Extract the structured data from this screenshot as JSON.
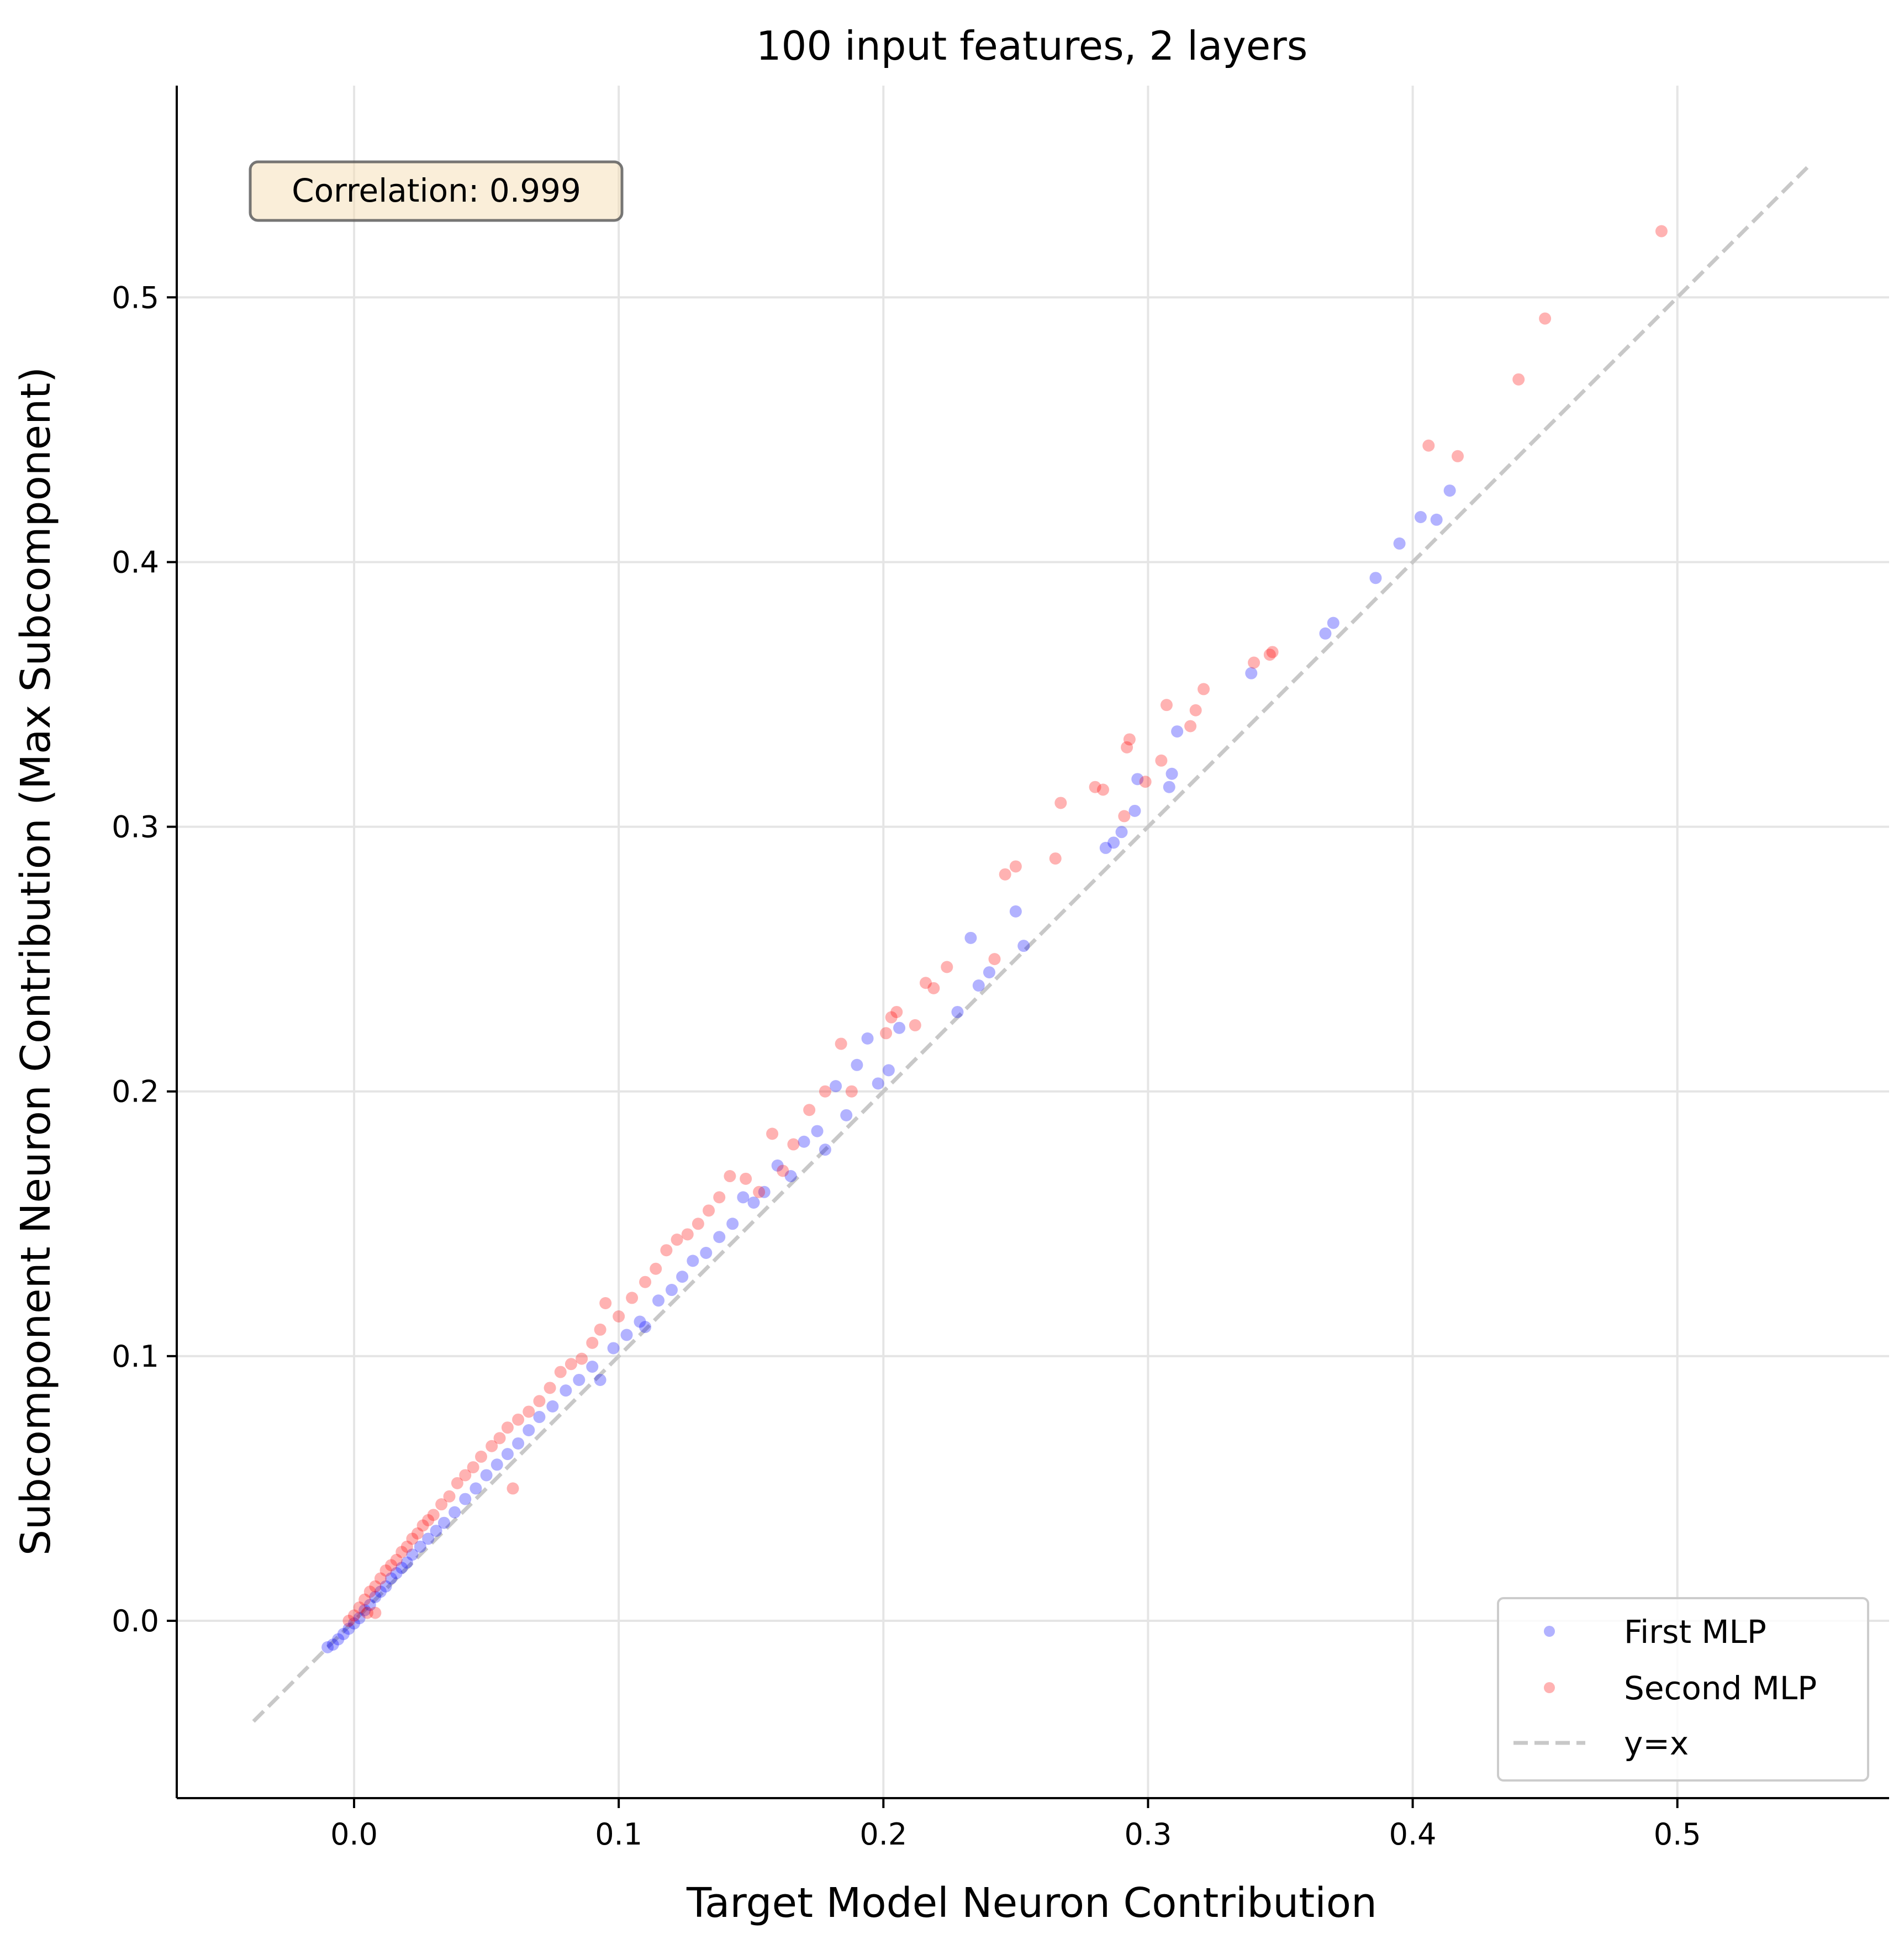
{
  "chart_data": {
    "type": "scatter",
    "title": "100 input features, 2 layers",
    "xlabel": "Target Model Neuron Contribution",
    "ylabel": "Subcomponent Neuron Contribution (Max Subcomponent)",
    "xlim": [
      -0.067,
      0.58
    ],
    "ylim": [
      -0.067,
      0.58
    ],
    "xticks": [
      0.0,
      0.1,
      0.2,
      0.3,
      0.4,
      0.5
    ],
    "yticks": [
      0.0,
      0.1,
      0.2,
      0.3,
      0.4,
      0.5
    ],
    "xtick_labels": [
      "0.0",
      "0.1",
      "0.2",
      "0.3",
      "0.4",
      "0.5"
    ],
    "ytick_labels": [
      "0.0",
      "0.1",
      "0.2",
      "0.3",
      "0.4",
      "0.5"
    ],
    "grid": true,
    "legend_position": "bottom-right",
    "annotation": "Correlation: 0.999",
    "series": [
      {
        "name": "First MLP",
        "color": "#0000ff",
        "points": [
          [
            -0.01,
            -0.01
          ],
          [
            -0.008,
            -0.009
          ],
          [
            -0.006,
            -0.007
          ],
          [
            -0.004,
            -0.005
          ],
          [
            -0.002,
            -0.003
          ],
          [
            0.0,
            -0.001
          ],
          [
            0.002,
            0.001
          ],
          [
            0.004,
            0.004
          ],
          [
            0.006,
            0.006
          ],
          [
            0.008,
            0.009
          ],
          [
            0.01,
            0.011
          ],
          [
            0.012,
            0.013
          ],
          [
            0.014,
            0.016
          ],
          [
            0.016,
            0.018
          ],
          [
            0.018,
            0.02
          ],
          [
            0.02,
            0.022
          ],
          [
            0.022,
            0.025
          ],
          [
            0.025,
            0.028
          ],
          [
            0.028,
            0.031
          ],
          [
            0.031,
            0.034
          ],
          [
            0.034,
            0.037
          ],
          [
            0.038,
            0.041
          ],
          [
            0.042,
            0.046
          ],
          [
            0.046,
            0.05
          ],
          [
            0.05,
            0.055
          ],
          [
            0.054,
            0.059
          ],
          [
            0.058,
            0.063
          ],
          [
            0.062,
            0.067
          ],
          [
            0.066,
            0.072
          ],
          [
            0.07,
            0.077
          ],
          [
            0.075,
            0.081
          ],
          [
            0.08,
            0.087
          ],
          [
            0.085,
            0.091
          ],
          [
            0.09,
            0.096
          ],
          [
            0.093,
            0.091
          ],
          [
            0.098,
            0.103
          ],
          [
            0.103,
            0.108
          ],
          [
            0.108,
            0.113
          ],
          [
            0.11,
            0.111
          ],
          [
            0.115,
            0.121
          ],
          [
            0.12,
            0.125
          ],
          [
            0.124,
            0.13
          ],
          [
            0.128,
            0.136
          ],
          [
            0.133,
            0.139
          ],
          [
            0.138,
            0.145
          ],
          [
            0.143,
            0.15
          ],
          [
            0.147,
            0.16
          ],
          [
            0.151,
            0.158
          ],
          [
            0.155,
            0.162
          ],
          [
            0.16,
            0.172
          ],
          [
            0.165,
            0.168
          ],
          [
            0.17,
            0.181
          ],
          [
            0.175,
            0.185
          ],
          [
            0.178,
            0.178
          ],
          [
            0.182,
            0.202
          ],
          [
            0.186,
            0.191
          ],
          [
            0.19,
            0.21
          ],
          [
            0.194,
            0.22
          ],
          [
            0.198,
            0.203
          ],
          [
            0.202,
            0.208
          ],
          [
            0.206,
            0.224
          ],
          [
            0.228,
            0.23
          ],
          [
            0.233,
            0.258
          ],
          [
            0.236,
            0.24
          ],
          [
            0.24,
            0.245
          ],
          [
            0.25,
            0.268
          ],
          [
            0.253,
            0.255
          ],
          [
            0.284,
            0.292
          ],
          [
            0.287,
            0.294
          ],
          [
            0.29,
            0.298
          ],
          [
            0.295,
            0.306
          ],
          [
            0.296,
            0.318
          ],
          [
            0.308,
            0.315
          ],
          [
            0.309,
            0.32
          ],
          [
            0.311,
            0.336
          ],
          [
            0.339,
            0.358
          ],
          [
            0.367,
            0.373
          ],
          [
            0.37,
            0.377
          ],
          [
            0.386,
            0.394
          ],
          [
            0.395,
            0.407
          ],
          [
            0.403,
            0.417
          ],
          [
            0.409,
            0.416
          ],
          [
            0.414,
            0.427
          ]
        ]
      },
      {
        "name": "Second MLP",
        "color": "#ff0000",
        "points": [
          [
            -0.002,
            0.0
          ],
          [
            0.0,
            0.002
          ],
          [
            0.002,
            0.005
          ],
          [
            0.004,
            0.008
          ],
          [
            0.005,
            0.003
          ],
          [
            0.006,
            0.011
          ],
          [
            0.008,
            0.013
          ],
          [
            0.008,
            0.003
          ],
          [
            0.01,
            0.016
          ],
          [
            0.012,
            0.019
          ],
          [
            0.014,
            0.021
          ],
          [
            0.016,
            0.023
          ],
          [
            0.018,
            0.026
          ],
          [
            0.02,
            0.028
          ],
          [
            0.022,
            0.031
          ],
          [
            0.024,
            0.033
          ],
          [
            0.026,
            0.036
          ],
          [
            0.028,
            0.038
          ],
          [
            0.03,
            0.04
          ],
          [
            0.033,
            0.044
          ],
          [
            0.036,
            0.047
          ],
          [
            0.039,
            0.052
          ],
          [
            0.042,
            0.055
          ],
          [
            0.045,
            0.058
          ],
          [
            0.048,
            0.062
          ],
          [
            0.052,
            0.066
          ],
          [
            0.055,
            0.069
          ],
          [
            0.058,
            0.073
          ],
          [
            0.06,
            0.05
          ],
          [
            0.062,
            0.076
          ],
          [
            0.066,
            0.079
          ],
          [
            0.07,
            0.083
          ],
          [
            0.074,
            0.088
          ],
          [
            0.078,
            0.094
          ],
          [
            0.082,
            0.097
          ],
          [
            0.086,
            0.099
          ],
          [
            0.09,
            0.105
          ],
          [
            0.093,
            0.11
          ],
          [
            0.095,
            0.12
          ],
          [
            0.1,
            0.115
          ],
          [
            0.105,
            0.122
          ],
          [
            0.11,
            0.128
          ],
          [
            0.114,
            0.133
          ],
          [
            0.118,
            0.14
          ],
          [
            0.122,
            0.144
          ],
          [
            0.126,
            0.146
          ],
          [
            0.13,
            0.15
          ],
          [
            0.134,
            0.155
          ],
          [
            0.138,
            0.16
          ],
          [
            0.142,
            0.168
          ],
          [
            0.148,
            0.167
          ],
          [
            0.153,
            0.162
          ],
          [
            0.158,
            0.184
          ],
          [
            0.162,
            0.17
          ],
          [
            0.166,
            0.18
          ],
          [
            0.172,
            0.193
          ],
          [
            0.178,
            0.2
          ],
          [
            0.184,
            0.218
          ],
          [
            0.188,
            0.2
          ],
          [
            0.201,
            0.222
          ],
          [
            0.203,
            0.228
          ],
          [
            0.205,
            0.23
          ],
          [
            0.212,
            0.225
          ],
          [
            0.216,
            0.241
          ],
          [
            0.219,
            0.239
          ],
          [
            0.224,
            0.247
          ],
          [
            0.242,
            0.25
          ],
          [
            0.246,
            0.282
          ],
          [
            0.25,
            0.285
          ],
          [
            0.265,
            0.288
          ],
          [
            0.267,
            0.309
          ],
          [
            0.28,
            0.315
          ],
          [
            0.283,
            0.314
          ],
          [
            0.291,
            0.304
          ],
          [
            0.292,
            0.33
          ],
          [
            0.293,
            0.333
          ],
          [
            0.299,
            0.317
          ],
          [
            0.305,
            0.325
          ],
          [
            0.307,
            0.346
          ],
          [
            0.316,
            0.338
          ],
          [
            0.318,
            0.344
          ],
          [
            0.321,
            0.352
          ],
          [
            0.34,
            0.362
          ],
          [
            0.346,
            0.365
          ],
          [
            0.347,
            0.366
          ],
          [
            0.406,
            0.444
          ],
          [
            0.417,
            0.44
          ],
          [
            0.44,
            0.469
          ],
          [
            0.45,
            0.492
          ],
          [
            0.494,
            0.525
          ]
        ]
      }
    ],
    "reference_line": {
      "name": "y=x",
      "color": "#c8c8c8",
      "x": [
        -0.038,
        0.55
      ],
      "y": [
        -0.038,
        0.55
      ]
    },
    "legend": [
      "First MLP",
      "Second MLP",
      "y=x"
    ]
  }
}
